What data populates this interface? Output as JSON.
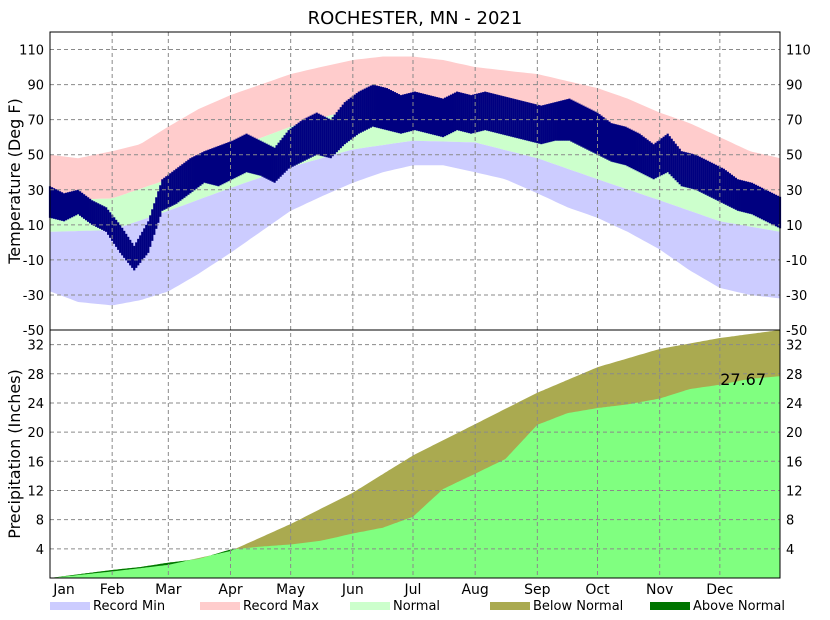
{
  "chart_data": {
    "type": "climate-summary",
    "title": "ROCHESTER, MN - 2021",
    "months": [
      "Jan",
      "Feb",
      "Mar",
      "Apr",
      "May",
      "Jun",
      "Jul",
      "Aug",
      "Sep",
      "Oct",
      "Nov",
      "Dec"
    ],
    "temperature": {
      "ylabel": "Temperature (Deg F)",
      "ylim": [
        -50,
        120
      ],
      "ticks": [
        110,
        90,
        70,
        50,
        30,
        10,
        -10,
        -30,
        -50
      ],
      "series": {
        "record_max": [
          {
            "day": 1,
            "value": 50
          },
          {
            "day": 15,
            "value": 48
          },
          {
            "day": 32,
            "value": 52
          },
          {
            "day": 46,
            "value": 56
          },
          {
            "day": 60,
            "value": 66
          },
          {
            "day": 75,
            "value": 76
          },
          {
            "day": 91,
            "value": 84
          },
          {
            "day": 106,
            "value": 90
          },
          {
            "day": 121,
            "value": 96
          },
          {
            "day": 136,
            "value": 100
          },
          {
            "day": 152,
            "value": 104
          },
          {
            "day": 167,
            "value": 106
          },
          {
            "day": 182,
            "value": 106
          },
          {
            "day": 197,
            "value": 104
          },
          {
            "day": 213,
            "value": 100
          },
          {
            "day": 228,
            "value": 98
          },
          {
            "day": 244,
            "value": 96
          },
          {
            "day": 259,
            "value": 92
          },
          {
            "day": 274,
            "value": 88
          },
          {
            "day": 289,
            "value": 82
          },
          {
            "day": 305,
            "value": 74
          },
          {
            "day": 320,
            "value": 68
          },
          {
            "day": 335,
            "value": 60
          },
          {
            "day": 350,
            "value": 52
          },
          {
            "day": 365,
            "value": 48
          }
        ],
        "normal_high": [
          {
            "day": 1,
            "value": 24
          },
          {
            "day": 32,
            "value": 25
          },
          {
            "day": 60,
            "value": 36
          },
          {
            "day": 91,
            "value": 53
          },
          {
            "day": 121,
            "value": 66
          },
          {
            "day": 152,
            "value": 76
          },
          {
            "day": 182,
            "value": 81
          },
          {
            "day": 213,
            "value": 80
          },
          {
            "day": 244,
            "value": 72
          },
          {
            "day": 274,
            "value": 59
          },
          {
            "day": 305,
            "value": 43
          },
          {
            "day": 335,
            "value": 30
          },
          {
            "day": 365,
            "value": 24
          }
        ],
        "normal_low": [
          {
            "day": 1,
            "value": 6
          },
          {
            "day": 32,
            "value": 7
          },
          {
            "day": 60,
            "value": 18
          },
          {
            "day": 91,
            "value": 31
          },
          {
            "day": 121,
            "value": 43
          },
          {
            "day": 152,
            "value": 53
          },
          {
            "day": 182,
            "value": 58
          },
          {
            "day": 213,
            "value": 57
          },
          {
            "day": 244,
            "value": 48
          },
          {
            "day": 274,
            "value": 36
          },
          {
            "day": 305,
            "value": 24
          },
          {
            "day": 335,
            "value": 12
          },
          {
            "day": 365,
            "value": 6
          }
        ],
        "record_min": [
          {
            "day": 1,
            "value": -28
          },
          {
            "day": 15,
            "value": -34
          },
          {
            "day": 32,
            "value": -36
          },
          {
            "day": 46,
            "value": -33
          },
          {
            "day": 60,
            "value": -28
          },
          {
            "day": 75,
            "value": -18
          },
          {
            "day": 91,
            "value": -6
          },
          {
            "day": 106,
            "value": 6
          },
          {
            "day": 121,
            "value": 18
          },
          {
            "day": 136,
            "value": 26
          },
          {
            "day": 152,
            "value": 34
          },
          {
            "day": 167,
            "value": 40
          },
          {
            "day": 182,
            "value": 44
          },
          {
            "day": 197,
            "value": 44
          },
          {
            "day": 213,
            "value": 40
          },
          {
            "day": 228,
            "value": 36
          },
          {
            "day": 244,
            "value": 28
          },
          {
            "day": 259,
            "value": 20
          },
          {
            "day": 274,
            "value": 14
          },
          {
            "day": 289,
            "value": 6
          },
          {
            "day": 305,
            "value": -4
          },
          {
            "day": 320,
            "value": -16
          },
          {
            "day": 335,
            "value": -26
          },
          {
            "day": 350,
            "value": -30
          },
          {
            "day": 365,
            "value": -32
          }
        ],
        "actual_high": [
          {
            "day": 1,
            "value": 32
          },
          {
            "day": 8,
            "value": 28
          },
          {
            "day": 15,
            "value": 30
          },
          {
            "day": 22,
            "value": 24
          },
          {
            "day": 29,
            "value": 20
          },
          {
            "day": 36,
            "value": 10
          },
          {
            "day": 43,
            "value": -2
          },
          {
            "day": 50,
            "value": 12
          },
          {
            "day": 57,
            "value": 36
          },
          {
            "day": 64,
            "value": 42
          },
          {
            "day": 71,
            "value": 48
          },
          {
            "day": 78,
            "value": 52
          },
          {
            "day": 85,
            "value": 55
          },
          {
            "day": 92,
            "value": 58
          },
          {
            "day": 99,
            "value": 62
          },
          {
            "day": 106,
            "value": 58
          },
          {
            "day": 113,
            "value": 54
          },
          {
            "day": 120,
            "value": 64
          },
          {
            "day": 127,
            "value": 70
          },
          {
            "day": 134,
            "value": 74
          },
          {
            "day": 141,
            "value": 70
          },
          {
            "day": 148,
            "value": 80
          },
          {
            "day": 155,
            "value": 86
          },
          {
            "day": 162,
            "value": 90
          },
          {
            "day": 169,
            "value": 88
          },
          {
            "day": 176,
            "value": 84
          },
          {
            "day": 183,
            "value": 86
          },
          {
            "day": 190,
            "value": 84
          },
          {
            "day": 197,
            "value": 82
          },
          {
            "day": 204,
            "value": 86
          },
          {
            "day": 211,
            "value": 84
          },
          {
            "day": 218,
            "value": 86
          },
          {
            "day": 225,
            "value": 84
          },
          {
            "day": 232,
            "value": 82
          },
          {
            "day": 239,
            "value": 80
          },
          {
            "day": 246,
            "value": 78
          },
          {
            "day": 253,
            "value": 80
          },
          {
            "day": 260,
            "value": 82
          },
          {
            "day": 267,
            "value": 78
          },
          {
            "day": 274,
            "value": 74
          },
          {
            "day": 281,
            "value": 68
          },
          {
            "day": 288,
            "value": 66
          },
          {
            "day": 295,
            "value": 62
          },
          {
            "day": 302,
            "value": 56
          },
          {
            "day": 309,
            "value": 62
          },
          {
            "day": 316,
            "value": 52
          },
          {
            "day": 323,
            "value": 50
          },
          {
            "day": 330,
            "value": 46
          },
          {
            "day": 337,
            "value": 42
          },
          {
            "day": 344,
            "value": 36
          },
          {
            "day": 351,
            "value": 34
          },
          {
            "day": 358,
            "value": 30
          },
          {
            "day": 365,
            "value": 26
          }
        ],
        "actual_low": [
          {
            "day": 1,
            "value": 14
          },
          {
            "day": 8,
            "value": 12
          },
          {
            "day": 15,
            "value": 16
          },
          {
            "day": 22,
            "value": 10
          },
          {
            "day": 29,
            "value": 6
          },
          {
            "day": 36,
            "value": -6
          },
          {
            "day": 43,
            "value": -16
          },
          {
            "day": 50,
            "value": -6
          },
          {
            "day": 57,
            "value": 18
          },
          {
            "day": 64,
            "value": 22
          },
          {
            "day": 71,
            "value": 28
          },
          {
            "day": 78,
            "value": 34
          },
          {
            "day": 85,
            "value": 32
          },
          {
            "day": 92,
            "value": 36
          },
          {
            "day": 99,
            "value": 40
          },
          {
            "day": 106,
            "value": 38
          },
          {
            "day": 113,
            "value": 34
          },
          {
            "day": 120,
            "value": 42
          },
          {
            "day": 127,
            "value": 46
          },
          {
            "day": 134,
            "value": 50
          },
          {
            "day": 141,
            "value": 48
          },
          {
            "day": 148,
            "value": 56
          },
          {
            "day": 155,
            "value": 62
          },
          {
            "day": 162,
            "value": 66
          },
          {
            "day": 169,
            "value": 64
          },
          {
            "day": 176,
            "value": 62
          },
          {
            "day": 183,
            "value": 64
          },
          {
            "day": 190,
            "value": 62
          },
          {
            "day": 197,
            "value": 60
          },
          {
            "day": 204,
            "value": 64
          },
          {
            "day": 211,
            "value": 62
          },
          {
            "day": 218,
            "value": 64
          },
          {
            "day": 225,
            "value": 62
          },
          {
            "day": 232,
            "value": 60
          },
          {
            "day": 239,
            "value": 58
          },
          {
            "day": 246,
            "value": 56
          },
          {
            "day": 253,
            "value": 58
          },
          {
            "day": 260,
            "value": 58
          },
          {
            "day": 267,
            "value": 54
          },
          {
            "day": 274,
            "value": 50
          },
          {
            "day": 281,
            "value": 46
          },
          {
            "day": 288,
            "value": 44
          },
          {
            "day": 295,
            "value": 40
          },
          {
            "day": 302,
            "value": 36
          },
          {
            "day": 309,
            "value": 40
          },
          {
            "day": 316,
            "value": 32
          },
          {
            "day": 323,
            "value": 30
          },
          {
            "day": 330,
            "value": 26
          },
          {
            "day": 337,
            "value": 22
          },
          {
            "day": 344,
            "value": 18
          },
          {
            "day": 351,
            "value": 16
          },
          {
            "day": 358,
            "value": 12
          },
          {
            "day": 365,
            "value": 8
          }
        ]
      }
    },
    "precipitation": {
      "ylabel": "Precipitation (Inches)",
      "ylim": [
        0,
        34
      ],
      "ticks": [
        32,
        28,
        24,
        20,
        16,
        12,
        8,
        4
      ],
      "final_total_label": "27.67",
      "series": {
        "normal": [
          {
            "day": 1,
            "value": 0
          },
          {
            "day": 32,
            "value": 0.9
          },
          {
            "day": 60,
            "value": 1.8
          },
          {
            "day": 91,
            "value": 3.7
          },
          {
            "day": 121,
            "value": 7.4
          },
          {
            "day": 152,
            "value": 11.7
          },
          {
            "day": 182,
            "value": 16.8
          },
          {
            "day": 213,
            "value": 21.1
          },
          {
            "day": 244,
            "value": 25.4
          },
          {
            "day": 274,
            "value": 28.9
          },
          {
            "day": 305,
            "value": 31.4
          },
          {
            "day": 335,
            "value": 32.9
          },
          {
            "day": 365,
            "value": 34.0
          }
        ],
        "actual": [
          {
            "day": 1,
            "value": 0
          },
          {
            "day": 15,
            "value": 0.5
          },
          {
            "day": 32,
            "value": 1.1
          },
          {
            "day": 46,
            "value": 1.5
          },
          {
            "day": 60,
            "value": 2.1
          },
          {
            "day": 75,
            "value": 2.6
          },
          {
            "day": 91,
            "value": 3.9
          },
          {
            "day": 106,
            "value": 4.3
          },
          {
            "day": 121,
            "value": 4.6
          },
          {
            "day": 136,
            "value": 5.1
          },
          {
            "day": 152,
            "value": 6.1
          },
          {
            "day": 167,
            "value": 6.9
          },
          {
            "day": 182,
            "value": 8.4
          },
          {
            "day": 197,
            "value": 12.2
          },
          {
            "day": 213,
            "value": 14.3
          },
          {
            "day": 228,
            "value": 16.3
          },
          {
            "day": 244,
            "value": 21.0
          },
          {
            "day": 259,
            "value": 22.6
          },
          {
            "day": 274,
            "value": 23.3
          },
          {
            "day": 289,
            "value": 23.8
          },
          {
            "day": 305,
            "value": 24.6
          },
          {
            "day": 320,
            "value": 25.9
          },
          {
            "day": 335,
            "value": 26.5
          },
          {
            "day": 350,
            "value": 27.3
          },
          {
            "day": 365,
            "value": 27.67
          }
        ]
      }
    },
    "legend": [
      {
        "key": "record_min",
        "label": "Record Min",
        "color": "#ccccff"
      },
      {
        "key": "record_max",
        "label": "Record Max",
        "color": "#ffcccc"
      },
      {
        "key": "normal",
        "label": "Normal",
        "color": "#ccffcc"
      },
      {
        "key": "below_normal",
        "label": "Below Normal",
        "color": "#aaaa50"
      },
      {
        "key": "above_normal",
        "label": "Above Normal",
        "color": "#007500"
      }
    ],
    "colors": {
      "actual_temp": "#000080",
      "precip_actual": "#80ff80",
      "below_normal": "#aaaa50",
      "above_normal": "#007500"
    }
  }
}
